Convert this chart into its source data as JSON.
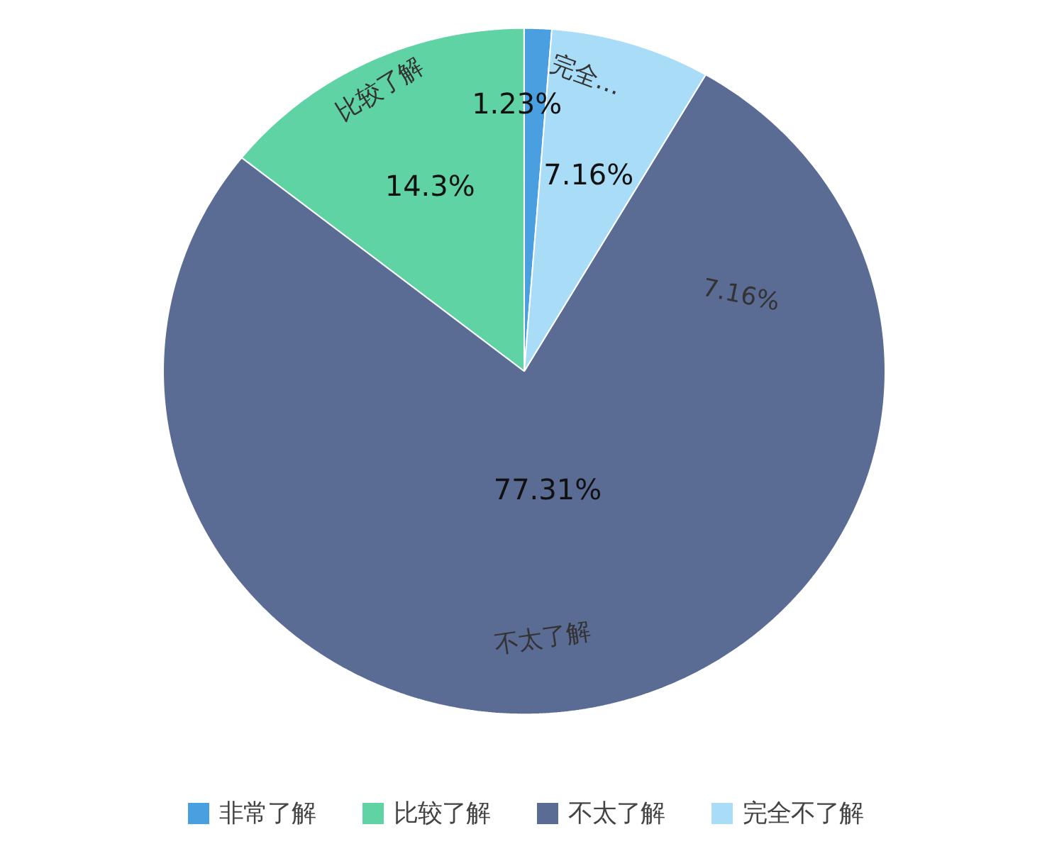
{
  "chart_data": {
    "type": "pie",
    "categories": [
      "非常了解",
      "比较了解",
      "不太了解",
      "完全不了解"
    ],
    "values": [
      1.23,
      14.3,
      77.31,
      7.16
    ],
    "colors": [
      "#4a9fe0",
      "#5fd3a4",
      "#5a6b94",
      "#a8dcf7"
    ],
    "value_labels": [
      "1.23%",
      "14.3%",
      "77.31%",
      "7.16%"
    ],
    "annotations": [
      "比较了解",
      "完全…",
      "不太了解",
      "7.16%"
    ],
    "legend": "bottom"
  }
}
